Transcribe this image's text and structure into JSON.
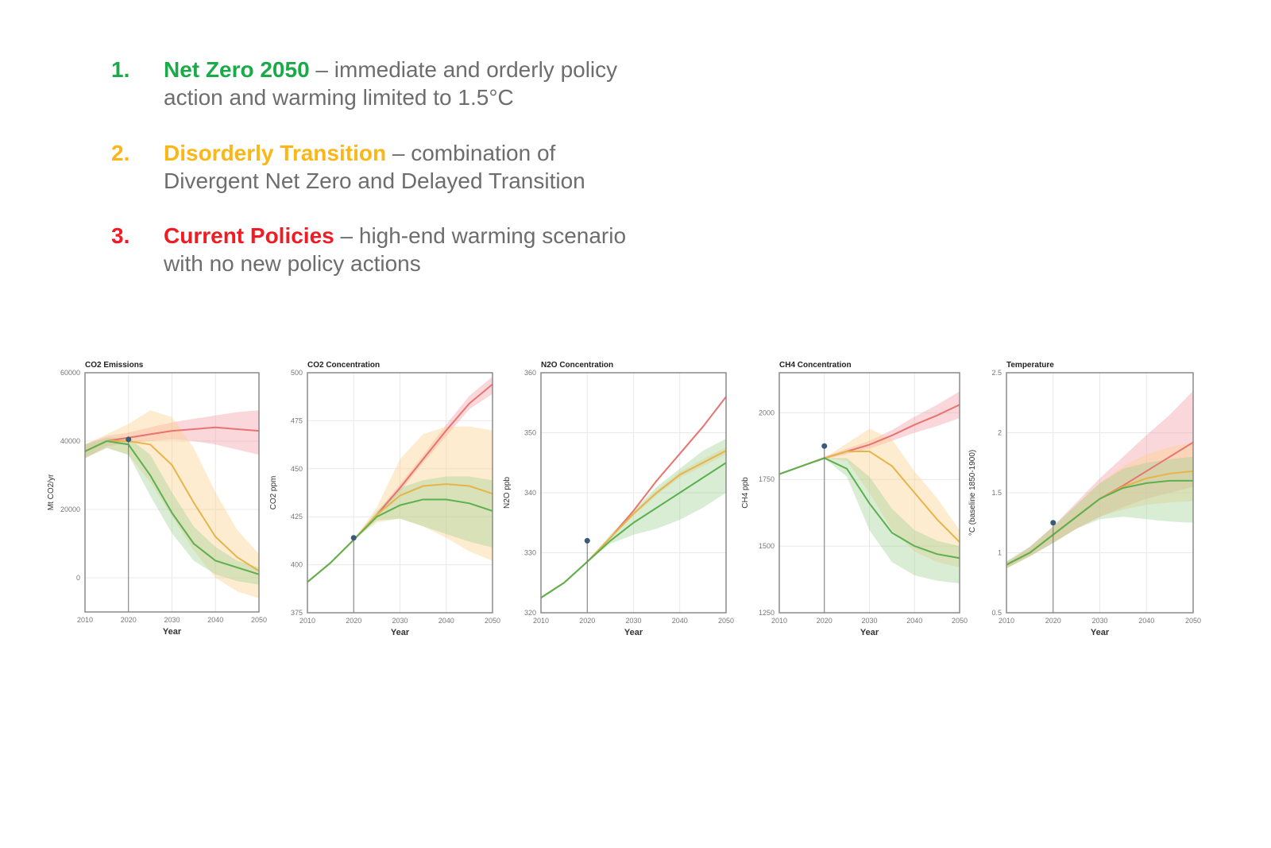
{
  "scenarios": [
    {
      "number": "1.",
      "name": "Net Zero 2050",
      "desc1": " – immediate and orderly policy",
      "desc2": "action and warming limited to 1.5°C",
      "color": "#1aaa4a"
    },
    {
      "number": "2.",
      "name": "Disorderly Transition",
      "desc1": " – combination of",
      "desc2": "Divergent Net Zero and Delayed Transition",
      "color": "#fbb617"
    },
    {
      "number": "3.",
      "name": "Current Policies",
      "desc1": " – high-end warming scenario",
      "desc2": "with no new policy actions",
      "color": "#ef1c24"
    }
  ],
  "series_colors": {
    "current": "#e8736f",
    "disorderly": "#e6b54a",
    "netzero": "#5cb04f",
    "observed": "#3b5a7a"
  },
  "chart_data": [
    {
      "type": "line",
      "title": "CO2 Emissions",
      "xlabel": "Year",
      "ylabel": "Mt CO2/yr",
      "xlim": [
        2010,
        2050
      ],
      "ylim": [
        -10000,
        60000
      ],
      "xticks": [
        2010,
        2020,
        2030,
        2040,
        2050
      ],
      "yticks": [
        0,
        20000,
        40000,
        60000
      ],
      "grid": true,
      "x": [
        2010,
        2015,
        2020,
        2025,
        2030,
        2035,
        2040,
        2045,
        2050
      ],
      "observed": {
        "x": 2020,
        "y": 40500
      },
      "series": {
        "current": {
          "values": [
            37000,
            40000,
            41000,
            42000,
            43000,
            43500,
            44000,
            43500,
            43000
          ],
          "upper": [
            39000,
            41500,
            42500,
            44000,
            45500,
            46500,
            47500,
            48500,
            49000
          ],
          "lower": [
            35000,
            38500,
            39500,
            40000,
            40500,
            40000,
            39000,
            37500,
            36000
          ]
        },
        "disorderly": {
          "values": [
            37000,
            40000,
            40000,
            39000,
            33000,
            22000,
            12000,
            6000,
            2000
          ],
          "upper": [
            39000,
            42000,
            45000,
            49000,
            47000,
            38000,
            25000,
            14000,
            7000
          ],
          "lower": [
            35000,
            38000,
            36000,
            28000,
            18000,
            8000,
            0,
            -4000,
            -6000
          ]
        },
        "netzero": {
          "values": [
            37000,
            40000,
            39000,
            30000,
            19000,
            10000,
            5000,
            3000,
            1000
          ],
          "upper": [
            39000,
            41000,
            41000,
            36000,
            25000,
            15000,
            9000,
            5000,
            3000
          ],
          "lower": [
            35000,
            38000,
            36000,
            24000,
            13000,
            5000,
            1000,
            -1000,
            -2000
          ]
        }
      }
    },
    {
      "type": "line",
      "title": "CO2 Concentration",
      "xlabel": "Year",
      "ylabel": "CO2 ppm",
      "xlim": [
        2010,
        2050
      ],
      "ylim": [
        375,
        500
      ],
      "xticks": [
        2010,
        2020,
        2030,
        2040,
        2050
      ],
      "yticks": [
        375,
        400,
        425,
        450,
        475,
        500
      ],
      "grid": true,
      "x": [
        2010,
        2015,
        2020,
        2025,
        2030,
        2035,
        2040,
        2045,
        2050
      ],
      "observed": {
        "x": 2020,
        "y": 414
      },
      "series": {
        "current": {
          "values": [
            391,
            401,
            413,
            426,
            440,
            455,
            470,
            484,
            494
          ],
          "upper": [
            391,
            401,
            413,
            427,
            442,
            457,
            473,
            488,
            498
          ],
          "lower": [
            391,
            401,
            413,
            425,
            438,
            453,
            467,
            481,
            489
          ]
        },
        "disorderly": {
          "values": [
            391,
            401,
            413,
            426,
            436,
            441,
            442,
            441,
            437
          ],
          "upper": [
            391,
            401,
            413,
            430,
            455,
            468,
            472,
            472,
            470
          ],
          "lower": [
            391,
            401,
            413,
            422,
            424,
            420,
            414,
            407,
            402
          ]
        },
        "netzero": {
          "values": [
            391,
            401,
            413,
            425,
            431,
            434,
            434,
            432,
            428
          ],
          "upper": [
            391,
            401,
            413,
            428,
            440,
            444,
            446,
            446,
            444
          ],
          "lower": [
            391,
            401,
            413,
            423,
            424,
            420,
            416,
            412,
            409
          ]
        }
      }
    },
    {
      "type": "line",
      "title": "N2O Concentration",
      "xlabel": "Year",
      "ylabel": "N2O ppb",
      "xlim": [
        2010,
        2050
      ],
      "ylim": [
        320,
        360
      ],
      "xticks": [
        2010,
        2020,
        2030,
        2040,
        2050
      ],
      "yticks": [
        320,
        330,
        340,
        350,
        360
      ],
      "grid": true,
      "x": [
        2010,
        2015,
        2020,
        2025,
        2030,
        2035,
        2040,
        2045,
        2050
      ],
      "observed": {
        "x": 2020,
        "y": 332
      },
      "series": {
        "current": {
          "values": [
            322.5,
            325,
            328.5,
            332.5,
            337,
            342,
            346.5,
            351,
            356
          ],
          "upper": [
            322.5,
            325,
            328.5,
            332.6,
            337.1,
            342.1,
            346.6,
            351.1,
            356.1
          ],
          "lower": [
            322.5,
            325,
            328.5,
            332.4,
            336.9,
            341.9,
            346.4,
            350.9,
            355.9
          ]
        },
        "disorderly": {
          "values": [
            322.5,
            325,
            328.5,
            332.5,
            336.5,
            340,
            343,
            345,
            347
          ],
          "upper": [
            322.5,
            325,
            328.5,
            332.6,
            336.8,
            340.4,
            343.5,
            345.6,
            347.6
          ],
          "lower": [
            322.5,
            325,
            328.5,
            332.4,
            336.2,
            339.6,
            342.5,
            344.4,
            346.4
          ]
        },
        "netzero": {
          "values": [
            322.5,
            325,
            328.5,
            332,
            335,
            337.5,
            340,
            342.5,
            345
          ],
          "upper": [
            322.5,
            325,
            328.5,
            333,
            337,
            341,
            344,
            347,
            349
          ],
          "lower": [
            322.5,
            325,
            328.5,
            331.5,
            333,
            334,
            335.5,
            337.5,
            340
          ]
        }
      }
    },
    {
      "type": "line",
      "title": "CH4 Concentration",
      "xlabel": "Year",
      "ylabel": "CH4 ppb",
      "xlim": [
        2010,
        2050
      ],
      "ylim": [
        1250,
        2150
      ],
      "xticks": [
        2010,
        2020,
        2030,
        2040,
        2050
      ],
      "yticks": [
        1250,
        1500,
        1750,
        2000
      ],
      "grid": true,
      "x": [
        2010,
        2015,
        2020,
        2025,
        2030,
        2035,
        2040,
        2045,
        2050
      ],
      "observed": {
        "x": 2020,
        "y": 1875
      },
      "series": {
        "current": {
          "values": [
            1770,
            1800,
            1830,
            1855,
            1880,
            1915,
            1955,
            1990,
            2030
          ],
          "upper": [
            1772,
            1803,
            1835,
            1865,
            1895,
            1935,
            1985,
            2030,
            2080
          ],
          "lower": [
            1768,
            1797,
            1825,
            1845,
            1865,
            1895,
            1925,
            1950,
            1980
          ]
        },
        "disorderly": {
          "values": [
            1770,
            1800,
            1830,
            1855,
            1855,
            1800,
            1700,
            1600,
            1515
          ],
          "upper": [
            1770,
            1800,
            1830,
            1885,
            1940,
            1900,
            1780,
            1680,
            1560
          ],
          "lower": [
            1770,
            1800,
            1830,
            1820,
            1700,
            1560,
            1480,
            1440,
            1420
          ]
        },
        "netzero": {
          "values": [
            1770,
            1800,
            1830,
            1790,
            1660,
            1550,
            1500,
            1470,
            1455
          ],
          "upper": [
            1770,
            1800,
            1830,
            1830,
            1760,
            1640,
            1560,
            1520,
            1500
          ],
          "lower": [
            1770,
            1800,
            1830,
            1760,
            1560,
            1440,
            1390,
            1370,
            1360
          ]
        }
      }
    },
    {
      "type": "line",
      "title": "Temperature",
      "xlabel": "Year",
      "ylabel": "°C (baseline 1850-1900)",
      "xlim": [
        2010,
        2050
      ],
      "ylim": [
        0.5,
        2.5
      ],
      "xticks": [
        2010,
        2020,
        2030,
        2040,
        2050
      ],
      "yticks": [
        0.5,
        1.0,
        1.5,
        2.0,
        2.5
      ],
      "grid": true,
      "x": [
        2010,
        2015,
        2020,
        2025,
        2030,
        2035,
        2040,
        2045,
        2050
      ],
      "observed": {
        "x": 2020,
        "y": 1.25
      },
      "series": {
        "current": {
          "values": [
            0.9,
            1.0,
            1.15,
            1.3,
            1.45,
            1.56,
            1.68,
            1.8,
            1.92
          ],
          "upper": [
            0.92,
            1.05,
            1.22,
            1.42,
            1.62,
            1.8,
            1.98,
            2.15,
            2.35
          ],
          "lower": [
            0.87,
            0.97,
            1.08,
            1.2,
            1.3,
            1.38,
            1.45,
            1.5,
            1.55
          ]
        },
        "disorderly": {
          "values": [
            0.9,
            1.0,
            1.15,
            1.3,
            1.45,
            1.55,
            1.62,
            1.66,
            1.68
          ],
          "upper": [
            0.92,
            1.04,
            1.21,
            1.4,
            1.58,
            1.72,
            1.82,
            1.88,
            1.92
          ],
          "lower": [
            0.87,
            0.97,
            1.09,
            1.2,
            1.3,
            1.36,
            1.4,
            1.42,
            1.43
          ]
        },
        "netzero": {
          "values": [
            0.9,
            1.0,
            1.15,
            1.3,
            1.45,
            1.54,
            1.58,
            1.6,
            1.6
          ],
          "upper": [
            0.93,
            1.05,
            1.22,
            1.4,
            1.58,
            1.7,
            1.75,
            1.78,
            1.8
          ],
          "lower": [
            0.87,
            0.97,
            1.08,
            1.2,
            1.28,
            1.3,
            1.28,
            1.26,
            1.25
          ]
        }
      }
    }
  ]
}
